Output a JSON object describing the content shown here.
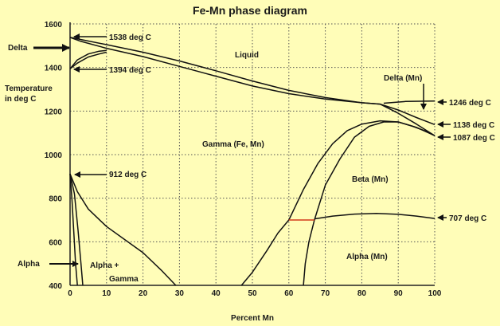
{
  "title": "Fe-Mn phase diagram",
  "chart_data": {
    "type": "phase-diagram",
    "title": "Fe-Mn phase diagram",
    "xlabel": "Percent Mn",
    "ylabel_line1": "Temperature",
    "ylabel_line2": "in deg C",
    "xlim": [
      0,
      100
    ],
    "ylim": [
      400,
      1600
    ],
    "xticks": [
      0,
      10,
      20,
      30,
      40,
      50,
      60,
      70,
      80,
      90,
      100
    ],
    "yticks": [
      400,
      600,
      800,
      1000,
      1200,
      1400,
      1600
    ],
    "xtick_labels": [
      "0",
      "10",
      "20",
      "30",
      "40",
      "50",
      "60",
      "70",
      "80",
      "90",
      "100"
    ],
    "ytick_labels": [
      "400",
      "600",
      "800",
      "1000",
      "1200",
      "1400",
      "1600"
    ],
    "grid": true,
    "regions": {
      "liquid": "Liquid",
      "delta_mn": "Delta (Mn)",
      "gamma": "Gamma (Fe, Mn)",
      "beta": "Beta (Mn)",
      "alpha_mn": "Alpha (Mn)",
      "alpha_gamma_1": "Alpha +",
      "alpha_gamma_2": "Gamma"
    },
    "side_labels": {
      "delta": "Delta",
      "alpha": "Alpha"
    },
    "annotations": [
      {
        "text": "1538 deg C",
        "x": 0,
        "y": 1538
      },
      {
        "text": "1394 deg C",
        "x": 0,
        "y": 1394
      },
      {
        "text": "912 deg C",
        "x": 0,
        "y": 912
      },
      {
        "text": "1246 deg C",
        "x": 100,
        "y": 1246
      },
      {
        "text": "1138 deg C",
        "x": 100,
        "y": 1138
      },
      {
        "text": "1087 deg C",
        "x": 100,
        "y": 1087
      },
      {
        "text": "707 deg C",
        "x": 100,
        "y": 707
      }
    ],
    "curves": [
      {
        "id": "liquidus",
        "points": [
          [
            0,
            1538
          ],
          [
            10,
            1505
          ],
          [
            20,
            1470
          ],
          [
            30,
            1430
          ],
          [
            40,
            1385
          ],
          [
            50,
            1338
          ],
          [
            60,
            1295
          ],
          [
            70,
            1262
          ],
          [
            80,
            1238
          ],
          [
            85,
            1232
          ],
          [
            90,
            1205
          ],
          [
            95,
            1170
          ],
          [
            100,
            1138
          ]
        ]
      },
      {
        "id": "solidus",
        "points": [
          [
            0,
            1538
          ],
          [
            3,
            1520
          ],
          [
            10,
            1488
          ],
          [
            20,
            1450
          ],
          [
            30,
            1405
          ],
          [
            40,
            1360
          ],
          [
            50,
            1315
          ],
          [
            60,
            1280
          ],
          [
            70,
            1255
          ],
          [
            80,
            1238
          ],
          [
            85,
            1232
          ],
          [
            90,
            1190
          ],
          [
            95,
            1140
          ],
          [
            100,
            1087
          ]
        ]
      },
      {
        "id": "delta-left-upper",
        "points": [
          [
            0,
            1394
          ],
          [
            2,
            1435
          ],
          [
            5,
            1462
          ],
          [
            8,
            1475
          ],
          [
            10,
            1478
          ]
        ]
      },
      {
        "id": "delta-left-lower",
        "points": [
          [
            0,
            1394
          ],
          [
            2,
            1420
          ],
          [
            5,
            1448
          ],
          [
            8,
            1462
          ],
          [
            10,
            1470
          ]
        ]
      },
      {
        "id": "delta-mn",
        "points": [
          [
            86,
            1236
          ],
          [
            92,
            1244
          ],
          [
            100,
            1246
          ]
        ]
      },
      {
        "id": "beta-outer",
        "points": [
          [
            60,
            700
          ],
          [
            64,
            840
          ],
          [
            68,
            960
          ],
          [
            72,
            1050
          ],
          [
            76,
            1110
          ],
          [
            80,
            1140
          ],
          [
            85,
            1155
          ],
          [
            90,
            1150
          ],
          [
            95,
            1125
          ],
          [
            100,
            1087
          ]
        ]
      },
      {
        "id": "beta-inner",
        "points": [
          [
            67,
            700
          ],
          [
            70,
            860
          ],
          [
            74,
            980
          ],
          [
            78,
            1080
          ],
          [
            82,
            1130
          ],
          [
            86,
            1150
          ],
          [
            90,
            1150
          ],
          [
            94,
            1130
          ],
          [
            98,
            1105
          ],
          [
            100,
            1087
          ]
        ]
      },
      {
        "id": "alpha-mn-top",
        "points": [
          [
            67,
            705
          ],
          [
            72,
            718
          ],
          [
            78,
            727
          ],
          [
            84,
            730
          ],
          [
            90,
            726
          ],
          [
            95,
            718
          ],
          [
            100,
            707
          ]
        ]
      },
      {
        "id": "alpha-gamma-right",
        "points": [
          [
            47,
            400
          ],
          [
            50,
            460
          ],
          [
            54,
            560
          ],
          [
            57,
            640
          ],
          [
            60,
            700
          ]
        ]
      },
      {
        "id": "alpha-mn-left",
        "points": [
          [
            64,
            400
          ],
          [
            64.5,
            500
          ],
          [
            65.5,
            600
          ],
          [
            67,
            700
          ]
        ]
      },
      {
        "id": "alpha-left-1",
        "points": [
          [
            0,
            912
          ],
          [
            0.5,
            800
          ],
          [
            1,
            650
          ],
          [
            1.5,
            500
          ],
          [
            2,
            400
          ]
        ]
      },
      {
        "id": "alpha-left-2",
        "points": [
          [
            0,
            912
          ],
          [
            1.2,
            820
          ],
          [
            2.2,
            650
          ],
          [
            3,
            500
          ],
          [
            3.5,
            400
          ]
        ]
      },
      {
        "id": "alpha-gamma-boundary",
        "points": [
          [
            0,
            912
          ],
          [
            2,
            830
          ],
          [
            5,
            750
          ],
          [
            10,
            670
          ],
          [
            15,
            610
          ],
          [
            20,
            550
          ],
          [
            25,
            470
          ],
          [
            29,
            400
          ]
        ]
      }
    ],
    "eutectoid_line": {
      "points": [
        [
          60,
          700
        ],
        [
          67,
          700
        ]
      ],
      "color": "#d23a1a"
    }
  }
}
